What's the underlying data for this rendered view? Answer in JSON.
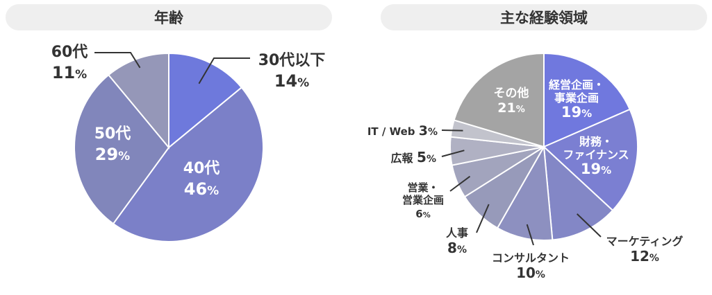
{
  "chart_data": [
    {
      "type": "pie",
      "title": "年齢",
      "unit": "%",
      "slices": [
        {
          "name": "30代以下",
          "value": 14
        },
        {
          "name": "40代",
          "value": 46
        },
        {
          "name": "50代",
          "value": 29
        },
        {
          "name": "60代",
          "value": 11
        }
      ]
    },
    {
      "type": "pie",
      "title": "主な経験領域",
      "unit": "%",
      "slices": [
        {
          "name": "経営企画・\n事業企画",
          "value": 19
        },
        {
          "name": "財務・\nファイナンス",
          "value": 19
        },
        {
          "name": "マーケティング",
          "value": 12
        },
        {
          "name": "コンサルタント",
          "value": 10
        },
        {
          "name": "人事",
          "value": 8
        },
        {
          "name": "営業・\n営業企画",
          "value": 6
        },
        {
          "name": "広報",
          "value": 5
        },
        {
          "name": "IT / Web",
          "value": 3
        },
        {
          "name": "その他",
          "value": 21
        }
      ]
    }
  ],
  "colors": {
    "age": [
      "#6e79dc",
      "#7b80c8",
      "#8186bb",
      "#9597b8"
    ],
    "exp": [
      "#7078de",
      "#7b7fd2",
      "#8387c6",
      "#8d90c0",
      "#979aba",
      "#a2a4bd",
      "#b0b1c3",
      "#c2c3cc",
      "#a4a4a4"
    ],
    "title_bg": "#efefef",
    "label_dark": "#333333",
    "label_light": "#ffffff"
  }
}
